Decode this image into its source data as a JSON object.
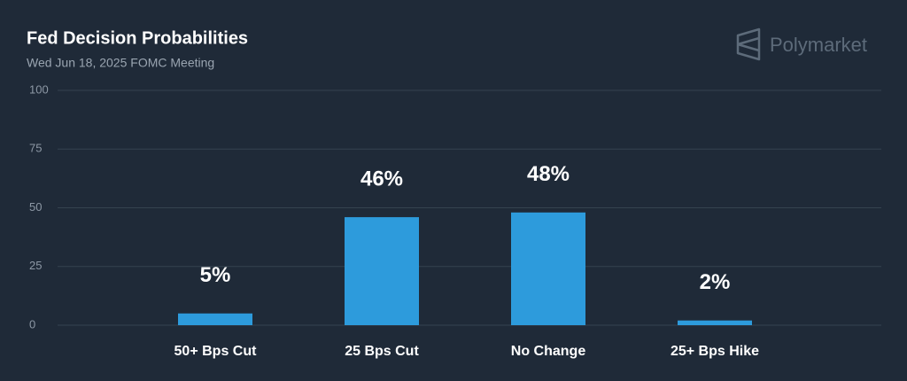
{
  "chart_data": {
    "type": "bar",
    "title": "Fed Decision Probabilities",
    "subtitle": "Wed Jun 18, 2025 FOMC Meeting",
    "brand": "Polymarket",
    "categories": [
      "50+ Bps Cut",
      "25 Bps Cut",
      "No Change",
      "25+ Bps Hike"
    ],
    "values": [
      5,
      46,
      48,
      2
    ],
    "value_labels": [
      "5%",
      "46%",
      "48%",
      "2%"
    ],
    "color": "#2d9bdc",
    "ylim": [
      0,
      100
    ],
    "yticks": [
      0,
      25,
      50,
      75,
      100
    ],
    "grid": true
  }
}
